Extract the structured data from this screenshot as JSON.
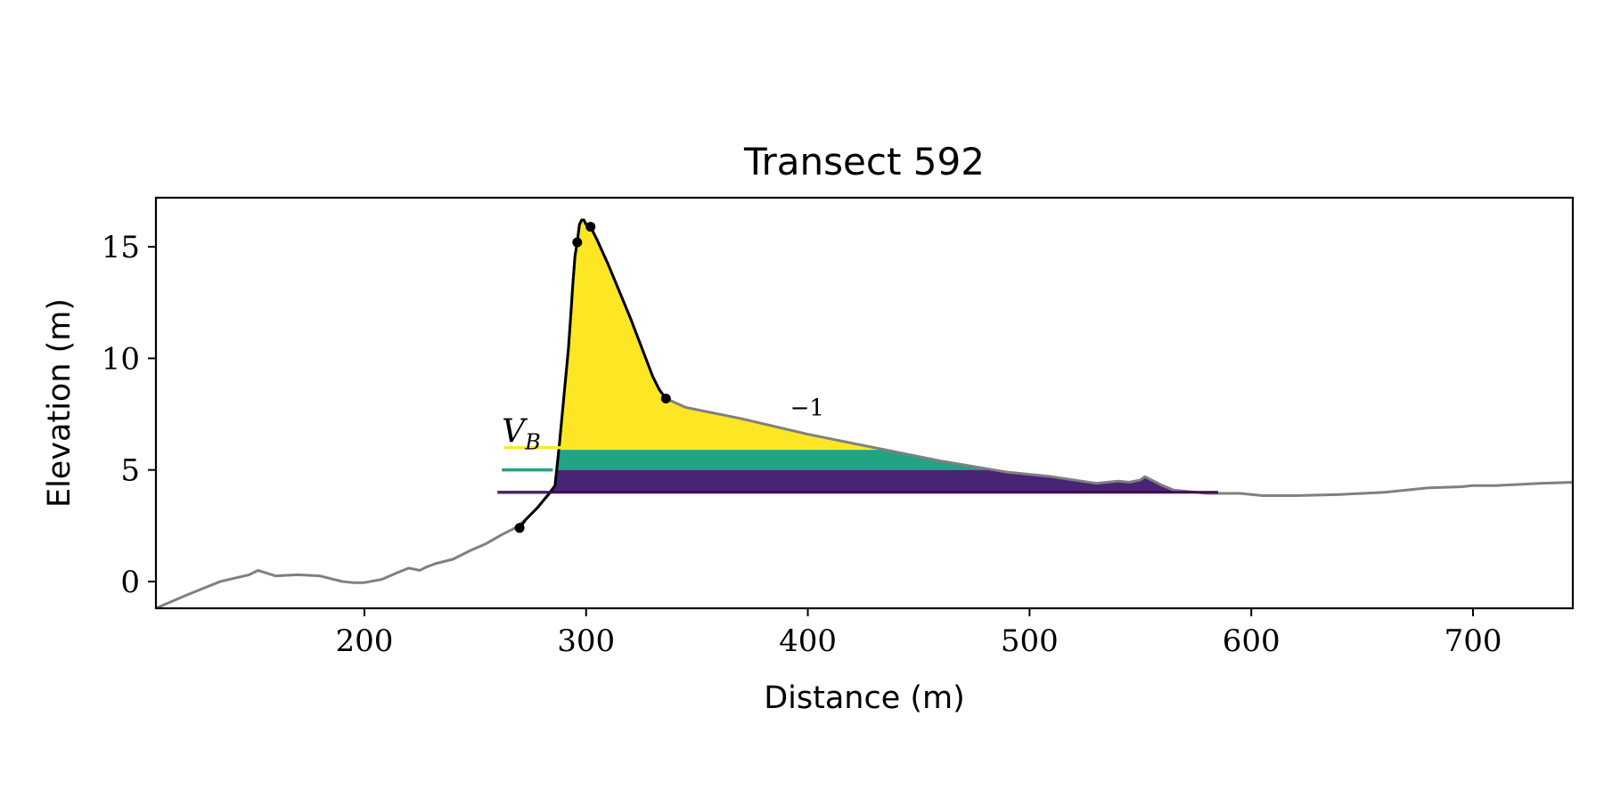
{
  "chart_data": {
    "type": "area",
    "title": "Transect 592",
    "xlabel": "Distance (m)",
    "ylabel": "Elevation (m)",
    "xlim": [
      106,
      745
    ],
    "ylim": [
      -1.2,
      17.2
    ],
    "x_ticks": [
      200,
      300,
      400,
      500,
      600,
      700
    ],
    "y_ticks": [
      0,
      5,
      10,
      15
    ],
    "grid": false,
    "annotations": [
      {
        "text_main": "V",
        "text_sub": "B",
        "x": 262,
        "y": 6.0
      },
      {
        "text": "−1",
        "x": 392,
        "y": 7.2
      }
    ],
    "series": [
      {
        "role": "profile",
        "color": "#808080",
        "x": [
          106,
          120,
          135,
          148,
          152,
          160,
          170,
          180,
          190,
          195,
          200,
          208,
          215,
          220,
          225,
          228,
          232,
          240,
          248,
          255,
          262,
          268,
          273,
          278,
          283,
          286,
          288,
          290,
          292,
          293,
          294,
          295,
          296,
          297,
          298,
          299,
          300,
          302,
          305,
          310,
          315,
          320,
          325,
          330,
          333,
          336,
          345,
          370,
          400,
          430,
          460,
          490,
          510,
          530,
          540,
          545,
          550,
          552,
          554,
          556,
          560,
          565,
          570,
          575,
          580,
          585,
          595,
          605,
          610,
          615,
          620,
          640,
          660,
          680,
          695,
          700,
          710,
          730,
          745
        ],
        "y": [
          -1.2,
          -0.6,
          0.0,
          0.3,
          0.5,
          0.25,
          0.3,
          0.25,
          0.0,
          -0.05,
          -0.05,
          0.1,
          0.4,
          0.6,
          0.5,
          0.65,
          0.8,
          1.0,
          1.4,
          1.7,
          2.1,
          2.4,
          2.8,
          3.3,
          3.9,
          4.3,
          6.2,
          8.3,
          10.4,
          11.8,
          13.3,
          14.6,
          15.2,
          16.0,
          16.2,
          16.2,
          16.0,
          15.9,
          15.3,
          14.2,
          13.0,
          11.8,
          10.5,
          9.2,
          8.6,
          8.2,
          7.8,
          7.3,
          6.6,
          6.0,
          5.4,
          4.9,
          4.7,
          4.4,
          4.5,
          4.45,
          4.55,
          4.7,
          4.6,
          4.5,
          4.3,
          4.1,
          4.05,
          4.0,
          3.95,
          3.95,
          3.95,
          3.85,
          3.85,
          3.85,
          3.85,
          3.9,
          4.0,
          4.2,
          4.25,
          4.3,
          4.3,
          4.4,
          4.45
        ]
      },
      {
        "role": "dune-outline",
        "color": "#000000",
        "x": [
          270,
          273,
          278,
          283,
          286,
          288,
          290,
          292,
          293,
          294,
          295,
          296,
          297,
          298,
          299,
          300,
          302,
          305,
          310,
          315,
          320,
          325,
          330,
          333,
          336
        ],
        "y": [
          2.4,
          2.8,
          3.3,
          3.9,
          4.3,
          6.2,
          8.3,
          10.4,
          11.8,
          13.3,
          14.6,
          15.2,
          16.0,
          16.2,
          16.2,
          16.0,
          15.9,
          15.3,
          14.2,
          13.0,
          11.8,
          10.5,
          9.2,
          8.6,
          8.2
        ]
      },
      {
        "role": "dune-points",
        "color": "#000000",
        "x": [
          270,
          296,
          302,
          336
        ],
        "y": [
          2.4,
          15.2,
          15.9,
          8.2
        ]
      }
    ],
    "bands": [
      {
        "name": "V_B",
        "color": "#fde725",
        "y0": 5.9,
        "y1": 16.2,
        "legend_x": [
          263,
          290
        ]
      },
      {
        "name": "",
        "color": "#21a384",
        "y0": 5.0,
        "y1": 5.9,
        "legend_x": [
          262,
          285
        ]
      },
      {
        "name": "",
        "color": "#482475",
        "y0": 4.0,
        "y1": 5.0,
        "legend_x": [
          260,
          282
        ]
      }
    ],
    "base_level": 4.0,
    "shaded_toe": {
      "color": "#c8c8c8"
    }
  }
}
